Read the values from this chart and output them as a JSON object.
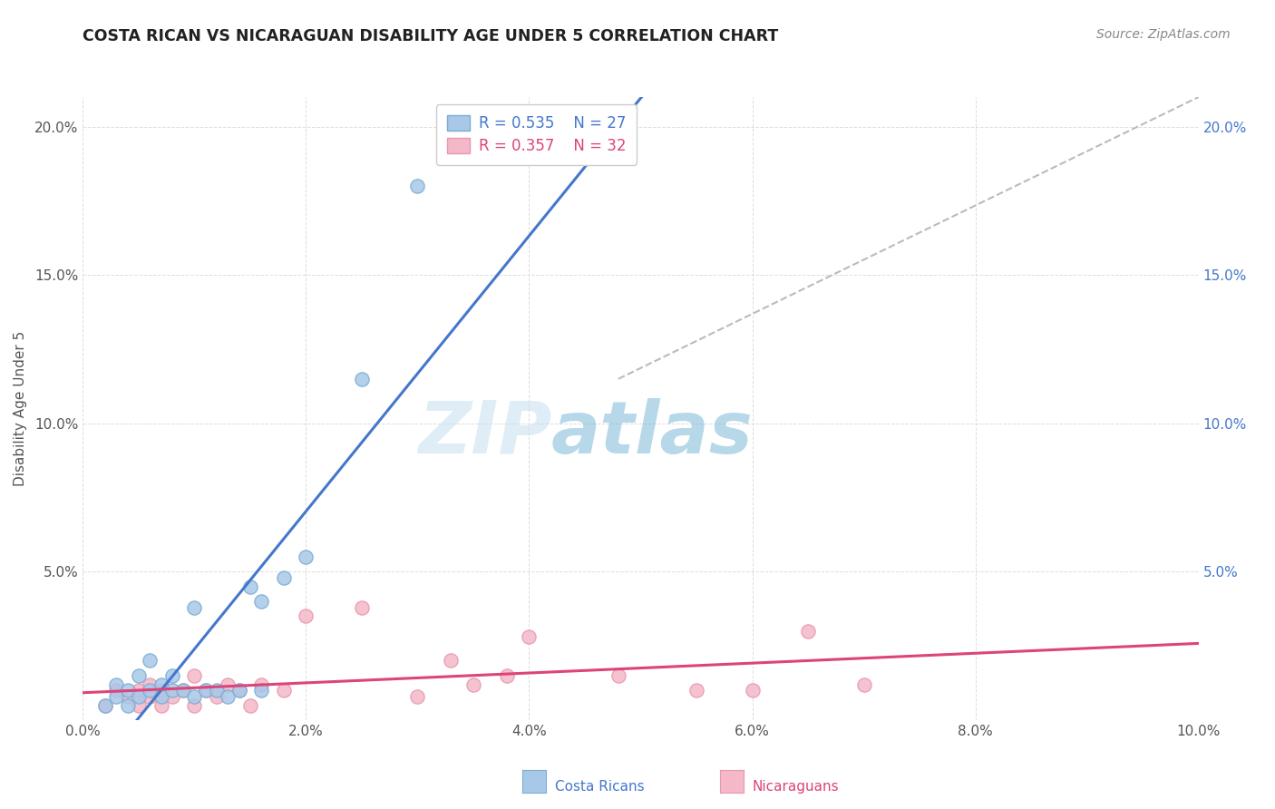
{
  "title": "COSTA RICAN VS NICARAGUAN DISABILITY AGE UNDER 5 CORRELATION CHART",
  "source": "Source: ZipAtlas.com",
  "ylabel": "Disability Age Under 5",
  "xlim": [
    0.0,
    0.1
  ],
  "ylim": [
    0.0,
    0.21
  ],
  "xtick_labels": [
    "0.0%",
    "2.0%",
    "4.0%",
    "6.0%",
    "8.0%",
    "10.0%"
  ],
  "xtick_vals": [
    0.0,
    0.02,
    0.04,
    0.06,
    0.08,
    0.1
  ],
  "ytick_labels": [
    "",
    "5.0%",
    "10.0%",
    "15.0%",
    "20.0%"
  ],
  "ytick_vals": [
    0.0,
    0.05,
    0.1,
    0.15,
    0.2
  ],
  "right_ytick_labels": [
    "",
    "5.0%",
    "10.0%",
    "15.0%",
    "20.0%"
  ],
  "right_ytick_vals": [
    0.0,
    0.05,
    0.1,
    0.15,
    0.2
  ],
  "costa_rican_scatter_color": "#a8c8e8",
  "costa_rican_scatter_edge": "#7aadd4",
  "nicaraguan_scatter_color": "#f4b8c8",
  "nicaraguan_scatter_edge": "#e898b0",
  "costa_rican_line_color": "#4477cc",
  "nicaraguan_line_color": "#dd4477",
  "trend_line_color": "#bbbbbb",
  "legend_R_costa": "R = 0.535",
  "legend_N_costa": "N = 27",
  "legend_R_nica": "R = 0.357",
  "legend_N_nica": "N = 32",
  "background_color": "#ffffff",
  "grid_color": "#dddddd",
  "costa_rican_x": [
    0.002,
    0.003,
    0.003,
    0.004,
    0.004,
    0.005,
    0.005,
    0.006,
    0.006,
    0.007,
    0.007,
    0.008,
    0.008,
    0.009,
    0.01,
    0.01,
    0.011,
    0.012,
    0.013,
    0.014,
    0.015,
    0.016,
    0.016,
    0.018,
    0.02,
    0.025,
    0.03
  ],
  "costa_rican_y": [
    0.005,
    0.008,
    0.012,
    0.005,
    0.01,
    0.008,
    0.015,
    0.01,
    0.02,
    0.012,
    0.008,
    0.01,
    0.015,
    0.01,
    0.008,
    0.038,
    0.01,
    0.01,
    0.008,
    0.01,
    0.045,
    0.01,
    0.04,
    0.048,
    0.055,
    0.115,
    0.18
  ],
  "nicaraguan_x": [
    0.002,
    0.003,
    0.004,
    0.005,
    0.005,
    0.006,
    0.006,
    0.007,
    0.007,
    0.008,
    0.009,
    0.01,
    0.01,
    0.011,
    0.012,
    0.013,
    0.014,
    0.015,
    0.016,
    0.018,
    0.02,
    0.025,
    0.03,
    0.033,
    0.035,
    0.038,
    0.04,
    0.048,
    0.055,
    0.06,
    0.065,
    0.07
  ],
  "nicaraguan_y": [
    0.005,
    0.01,
    0.008,
    0.005,
    0.01,
    0.008,
    0.012,
    0.01,
    0.005,
    0.008,
    0.01,
    0.005,
    0.015,
    0.01,
    0.008,
    0.012,
    0.01,
    0.005,
    0.012,
    0.01,
    0.035,
    0.038,
    0.008,
    0.02,
    0.012,
    0.015,
    0.028,
    0.015,
    0.01,
    0.01,
    0.03,
    0.012
  ]
}
